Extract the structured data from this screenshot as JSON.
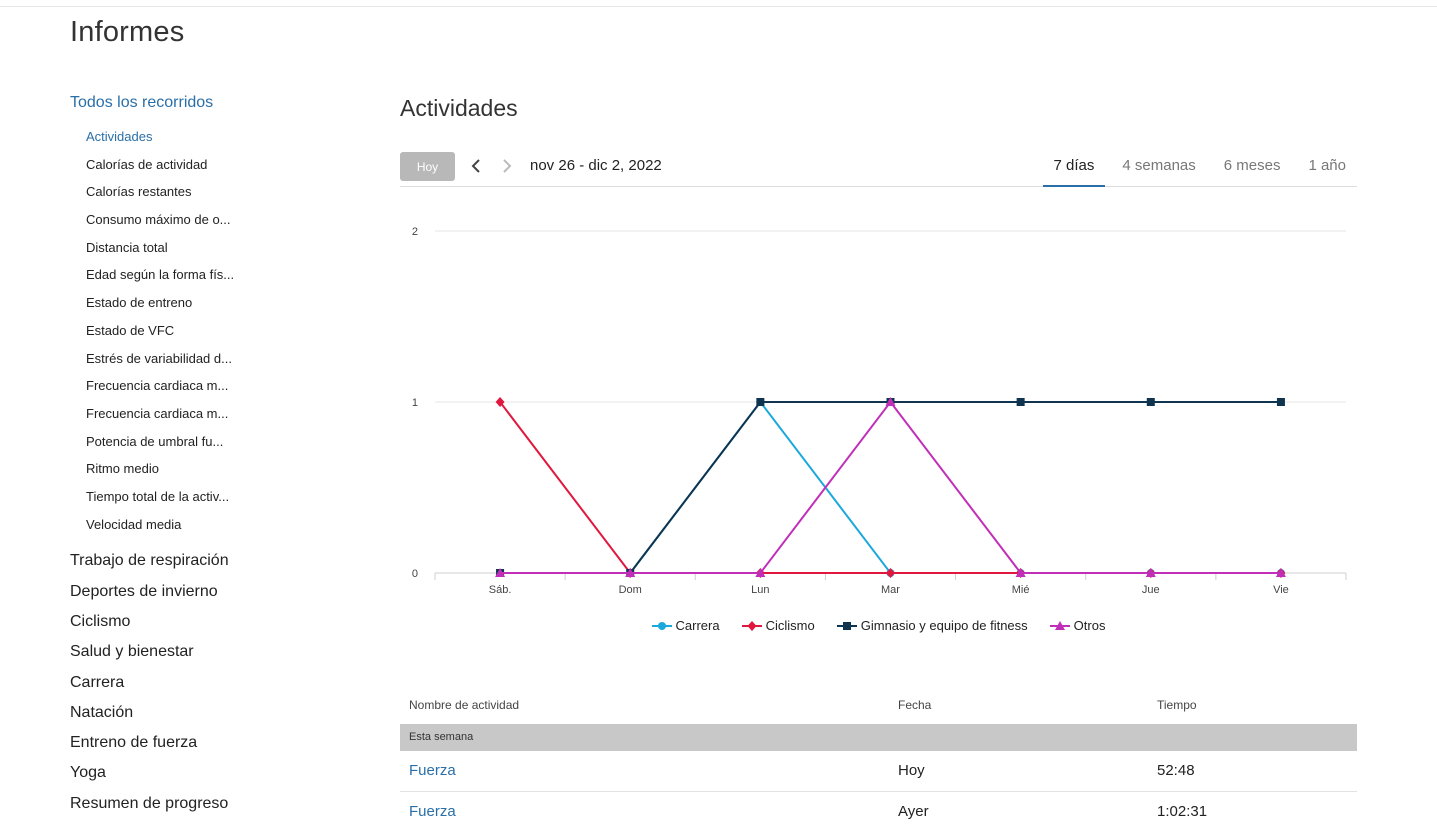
{
  "page": {
    "title": "Informes"
  },
  "sidebar": {
    "active_group": "Todos los recorridos",
    "subitems": [
      "Actividades",
      "Calorías de actividad",
      "Calorías restantes",
      "Consumo máximo de o...",
      "Distancia total",
      "Edad según la forma fís...",
      "Estado de entreno",
      "Estado de VFC",
      "Estrés de variabilidad d...",
      "Frecuencia cardiaca m...",
      "Frecuencia cardiaca m...",
      "Potencia de umbral fu...",
      "Ritmo medio",
      "Tiempo total de la activ...",
      "Velocidad media"
    ],
    "groups": [
      "Trabajo de respiración",
      "Deportes de invierno",
      "Ciclismo",
      "Salud y bienestar",
      "Carrera",
      "Natación",
      "Entreno de fuerza",
      "Yoga",
      "Resumen de progreso"
    ]
  },
  "main": {
    "title": "Actividades",
    "today_label": "Hoy",
    "date_range": "nov 26 - dic 2, 2022",
    "range_tabs": [
      "7 días",
      "4 semanas",
      "6 meses",
      "1 año"
    ],
    "active_range": "7 días"
  },
  "chart_data": {
    "type": "line",
    "categories": [
      "Sáb.",
      "Dom",
      "Lun",
      "Mar",
      "Mié",
      "Jue",
      "Vie"
    ],
    "yticks": [
      0,
      1,
      2
    ],
    "ylim": [
      0,
      2
    ],
    "legend_position": "bottom",
    "series": [
      {
        "name": "Carrera",
        "color": "#1ba8dc",
        "marker": "circle",
        "values": [
          0,
          0,
          1,
          0,
          0,
          0,
          0
        ]
      },
      {
        "name": "Ciclismo",
        "color": "#e0183e",
        "marker": "diamond",
        "values": [
          1,
          0,
          0,
          0,
          0,
          0,
          0
        ]
      },
      {
        "name": "Gimnasio y equipo de fitness",
        "color": "#0e3450",
        "marker": "square",
        "values": [
          0,
          0,
          1,
          1,
          1,
          1,
          1
        ]
      },
      {
        "name": "Otros",
        "color": "#c12fb9",
        "marker": "triangle",
        "values": [
          0,
          0,
          0,
          1,
          0,
          0,
          0
        ]
      }
    ]
  },
  "table": {
    "headers": {
      "name": "Nombre de actividad",
      "date": "Fecha",
      "time": "Tiempo"
    },
    "group_label": "Esta semana",
    "rows": [
      {
        "name": "Fuerza",
        "date": "Hoy",
        "time": "52:48"
      },
      {
        "name": "Fuerza",
        "date": "Ayer",
        "time": "1:02:31"
      }
    ]
  }
}
